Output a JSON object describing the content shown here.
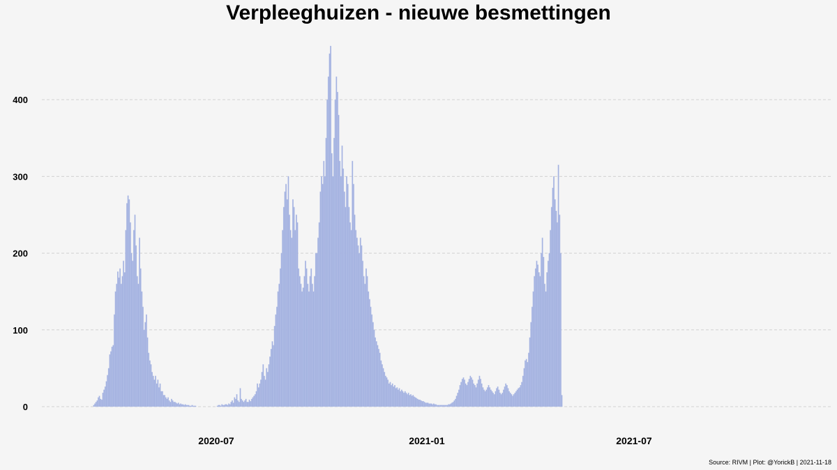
{
  "chart_data": {
    "type": "bar",
    "title": "Verpleeghuizen - nieuwe besmettingen",
    "xlabel": "",
    "ylabel": "",
    "x_start": "2020-03-16",
    "x_end": "2021-11-18",
    "ylim": [
      0,
      470
    ],
    "yticks": [
      0,
      100,
      200,
      300,
      400
    ],
    "xticks": [
      {
        "label": "2020-07",
        "date": "2020-07-01"
      },
      {
        "label": "2021-01",
        "date": "2021-01-01"
      },
      {
        "label": "2021-07",
        "date": "2021-07-01"
      }
    ],
    "grid": "horizontal-dashed",
    "bar_color": "#a3b1df",
    "bar_edge_color": "#b3c0ea",
    "daily_values": [
      2,
      4,
      6,
      8,
      12,
      14,
      10,
      9,
      18,
      22,
      26,
      33,
      41,
      50,
      68,
      72,
      78,
      80,
      120,
      150,
      160,
      176,
      168,
      180,
      160,
      170,
      190,
      175,
      230,
      265,
      275,
      270,
      240,
      200,
      190,
      230,
      250,
      210,
      170,
      160,
      220,
      180,
      150,
      130,
      100,
      110,
      120,
      90,
      70,
      60,
      55,
      45,
      40,
      35,
      40,
      30,
      35,
      25,
      30,
      20,
      20,
      15,
      15,
      12,
      10,
      12,
      8,
      6,
      10,
      8,
      6,
      6,
      5,
      4,
      5,
      3,
      4,
      3,
      3,
      2,
      3,
      2,
      2,
      2,
      1,
      1,
      2,
      1,
      1,
      1,
      0,
      0,
      0,
      0,
      0,
      0,
      0,
      0,
      0,
      0,
      0,
      0,
      0,
      0,
      0,
      0,
      0,
      0,
      1,
      2,
      2,
      1,
      3,
      2,
      2,
      3,
      3,
      2,
      4,
      3,
      6,
      8,
      5,
      12,
      10,
      16,
      8,
      6,
      24,
      10,
      8,
      6,
      8,
      10,
      6,
      6,
      9,
      7,
      10,
      12,
      14,
      16,
      20,
      30,
      25,
      30,
      35,
      45,
      55,
      40,
      35,
      50,
      45,
      55,
      65,
      75,
      85,
      80,
      105,
      120,
      130,
      150,
      160,
      180,
      200,
      230,
      260,
      280,
      290,
      270,
      300,
      250,
      230,
      220,
      270,
      260,
      230,
      250,
      240,
      180,
      170,
      160,
      150,
      155,
      170,
      190,
      180,
      160,
      150,
      170,
      180,
      160,
      150,
      170,
      200,
      200,
      220,
      240,
      280,
      300,
      290,
      320,
      300,
      350,
      400,
      430,
      460,
      470,
      330,
      300,
      350,
      400,
      430,
      410,
      380,
      320,
      300,
      340,
      310,
      280,
      260,
      300,
      290,
      260,
      240,
      230,
      320,
      290,
      250,
      230,
      220,
      210,
      200,
      220,
      210,
      190,
      170,
      160,
      180,
      170,
      150,
      140,
      130,
      120,
      110,
      100,
      90,
      85,
      80,
      75,
      70,
      60,
      55,
      50,
      45,
      40,
      38,
      35,
      30,
      32,
      28,
      30,
      26,
      28,
      24,
      25,
      22,
      24,
      20,
      22,
      20,
      18,
      20,
      18,
      16,
      18,
      15,
      16,
      14,
      15,
      13,
      12,
      11,
      10,
      9,
      9,
      8,
      7,
      7,
      6,
      5,
      5,
      5,
      4,
      4,
      4,
      3,
      4,
      3,
      3,
      2,
      2,
      2,
      2,
      2,
      2,
      2,
      2,
      2,
      2,
      3,
      3,
      4,
      5,
      6,
      8,
      10,
      14,
      18,
      22,
      28,
      32,
      36,
      38,
      35,
      30,
      28,
      32,
      36,
      40,
      38,
      35,
      30,
      28,
      25,
      30,
      35,
      40,
      36,
      30,
      25,
      22,
      20,
      22,
      25,
      28,
      25,
      22,
      20,
      18,
      16,
      20,
      24,
      26,
      22,
      18,
      16,
      18,
      22,
      26,
      30,
      28,
      24,
      20,
      18,
      16,
      14,
      16,
      18,
      20,
      22,
      24,
      25,
      28,
      32,
      40,
      50,
      60,
      62,
      58,
      70,
      90,
      110,
      130,
      150,
      170,
      180,
      190,
      185,
      175,
      170,
      200,
      220,
      195,
      160,
      150,
      175,
      190,
      200,
      230,
      260,
      285,
      300,
      270,
      255,
      240,
      315,
      250,
      200,
      15
    ]
  },
  "caption": "Source: RIVM | Plot: @YorickB |  2021-11-18"
}
